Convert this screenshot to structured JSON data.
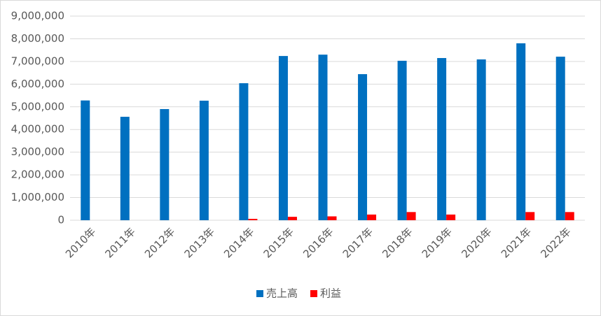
{
  "chart_data": {
    "type": "bar",
    "categories": [
      "2010年",
      "2011年",
      "2012年",
      "2013年",
      "2014年",
      "2015年",
      "2016年",
      "2017年",
      "2018年",
      "2019年",
      "2020年",
      "2021年",
      "2022年"
    ],
    "series": [
      {
        "name": "売上高",
        "color": "#0070c0",
        "values": [
          5280000,
          4560000,
          4900000,
          5270000,
          6040000,
          7240000,
          7300000,
          6440000,
          7030000,
          7150000,
          7090000,
          7800000,
          7210000
        ]
      },
      {
        "name": "利益",
        "color": "#ff0000",
        "values": [
          0,
          0,
          0,
          0,
          60000,
          150000,
          170000,
          250000,
          360000,
          250000,
          0,
          360000,
          360000
        ]
      }
    ],
    "ylim": [
      0,
      9000000
    ],
    "yticks": [
      {
        "value": 0,
        "label": "0"
      },
      {
        "value": 1000000,
        "label": "1,000,000"
      },
      {
        "value": 2000000,
        "label": "2,000,000"
      },
      {
        "value": 3000000,
        "label": "3,000,000"
      },
      {
        "value": 4000000,
        "label": "4,000,000"
      },
      {
        "value": 5000000,
        "label": "5,000,000"
      },
      {
        "value": 6000000,
        "label": "6,000,000"
      },
      {
        "value": 7000000,
        "label": "7,000,000"
      },
      {
        "value": 8000000,
        "label": "8,000,000"
      },
      {
        "value": 9000000,
        "label": "9,000,000"
      }
    ],
    "grid": true,
    "legend": "bottom"
  }
}
